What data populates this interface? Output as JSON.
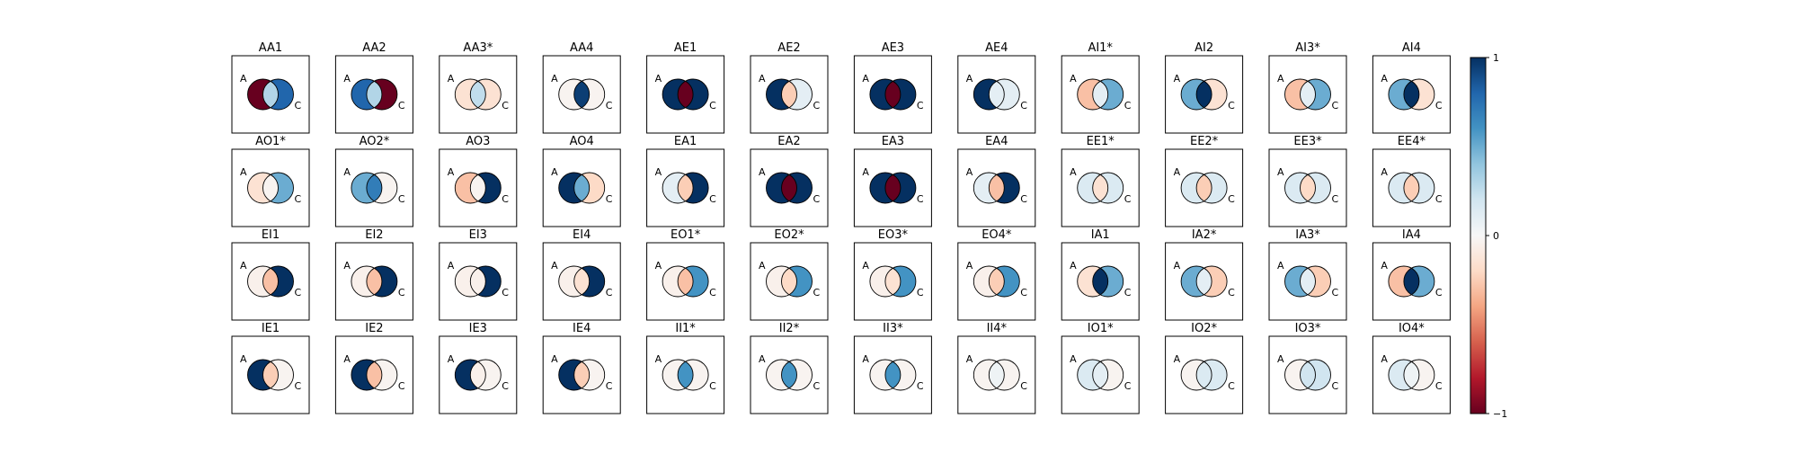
{
  "chart_data": {
    "type": "venn-grid",
    "colormap": "RdBu",
    "colorbar": {
      "min": -1,
      "max": 1,
      "ticks": [
        1,
        0,
        -1
      ],
      "tick_labels": [
        "1",
        "0",
        "−1"
      ]
    },
    "set_labels": [
      "A",
      "C"
    ],
    "panels": [
      {
        "title": "AA1",
        "left": -1,
        "middle": 0.3,
        "right": 0.8
      },
      {
        "title": "AA2",
        "left": 0.8,
        "middle": 0.3,
        "right": -1
      },
      {
        "title": "AA3*",
        "left": -0.15,
        "middle": 0.25,
        "right": -0.15
      },
      {
        "title": "AA4",
        "left": -0.03,
        "middle": 0.95,
        "right": -0.03
      },
      {
        "title": "AE1",
        "left": 1,
        "middle": -1,
        "right": 1
      },
      {
        "title": "AE2",
        "left": 1,
        "middle": -0.25,
        "right": 0.1
      },
      {
        "title": "AE3",
        "left": 1,
        "middle": -1,
        "right": 1
      },
      {
        "title": "AE4",
        "left": 1,
        "middle": 0.1,
        "right": 0.1
      },
      {
        "title": "AI1*",
        "left": -0.3,
        "middle": 0.1,
        "right": 0.5
      },
      {
        "title": "AI2",
        "left": 0.5,
        "middle": 1,
        "right": -0.15
      },
      {
        "title": "AI3*",
        "left": -0.3,
        "middle": 0.1,
        "right": 0.5
      },
      {
        "title": "AI4",
        "left": 0.5,
        "middle": 1,
        "right": -0.15
      },
      {
        "title": "AO1*",
        "left": -0.15,
        "middle": -0.03,
        "right": 0.5
      },
      {
        "title": "AO2*",
        "left": 0.5,
        "middle": 0.7,
        "right": -0.03
      },
      {
        "title": "AO3",
        "left": -0.3,
        "middle": -0.03,
        "right": 1
      },
      {
        "title": "AO4",
        "left": 1,
        "middle": 0.5,
        "right": -0.2
      },
      {
        "title": "EA1",
        "left": 0.1,
        "middle": -0.25,
        "right": 1
      },
      {
        "title": "EA2",
        "left": 1,
        "middle": -1,
        "right": 1
      },
      {
        "title": "EA3",
        "left": 1,
        "middle": -1,
        "right": 1
      },
      {
        "title": "EA4",
        "left": 0.1,
        "middle": -0.3,
        "right": 1
      },
      {
        "title": "EE1*",
        "left": 0.15,
        "middle": -0.15,
        "right": 0.15
      },
      {
        "title": "EE2*",
        "left": 0.15,
        "middle": -0.25,
        "right": 0.15
      },
      {
        "title": "EE3*",
        "left": 0.15,
        "middle": -0.2,
        "right": 0.15
      },
      {
        "title": "EE4*",
        "left": 0.15,
        "middle": -0.25,
        "right": 0.15
      },
      {
        "title": "EI1",
        "left": -0.05,
        "middle": -0.3,
        "right": 1
      },
      {
        "title": "EI2",
        "left": -0.05,
        "middle": -0.3,
        "right": 1
      },
      {
        "title": "EI3",
        "left": -0.05,
        "middle": -0.05,
        "right": 1
      },
      {
        "title": "EI4",
        "left": -0.05,
        "middle": -0.15,
        "right": 1
      },
      {
        "title": "EO1*",
        "left": -0.05,
        "middle": -0.3,
        "right": 0.6
      },
      {
        "title": "EO2*",
        "left": -0.05,
        "middle": -0.2,
        "right": 0.6
      },
      {
        "title": "EO3*",
        "left": -0.05,
        "middle": -0.15,
        "right": 0.6
      },
      {
        "title": "EO4*",
        "left": -0.05,
        "middle": -0.25,
        "right": 0.6
      },
      {
        "title": "IA1",
        "left": -0.15,
        "middle": 1,
        "right": 0.5
      },
      {
        "title": "IA2*",
        "left": 0.5,
        "middle": 0.1,
        "right": -0.25
      },
      {
        "title": "IA3*",
        "left": 0.5,
        "middle": 0.1,
        "right": -0.25
      },
      {
        "title": "IA4",
        "left": -0.3,
        "middle": 1,
        "right": 0.5
      },
      {
        "title": "IE1",
        "left": 1,
        "middle": -0.25,
        "right": -0.03
      },
      {
        "title": "IE2",
        "left": 1,
        "middle": -0.3,
        "right": -0.03
      },
      {
        "title": "IE3",
        "left": 1,
        "middle": -0.05,
        "right": -0.03
      },
      {
        "title": "IE4",
        "left": 1,
        "middle": -0.25,
        "right": -0.03
      },
      {
        "title": "II1*",
        "left": -0.03,
        "middle": 0.6,
        "right": -0.03
      },
      {
        "title": "II2*",
        "left": -0.03,
        "middle": 0.6,
        "right": -0.03
      },
      {
        "title": "II3*",
        "left": -0.03,
        "middle": 0.6,
        "right": -0.03
      },
      {
        "title": "II4*",
        "left": -0.03,
        "middle": 0.05,
        "right": -0.03
      },
      {
        "title": "IO1*",
        "left": 0.15,
        "middle": 0.1,
        "right": -0.03
      },
      {
        "title": "IO2*",
        "left": -0.03,
        "middle": 0.15,
        "right": 0.15
      },
      {
        "title": "IO3*",
        "left": -0.03,
        "middle": 0.2,
        "right": 0.2
      },
      {
        "title": "IO4*",
        "left": 0.15,
        "middle": 0.05,
        "right": -0.03
      }
    ]
  }
}
